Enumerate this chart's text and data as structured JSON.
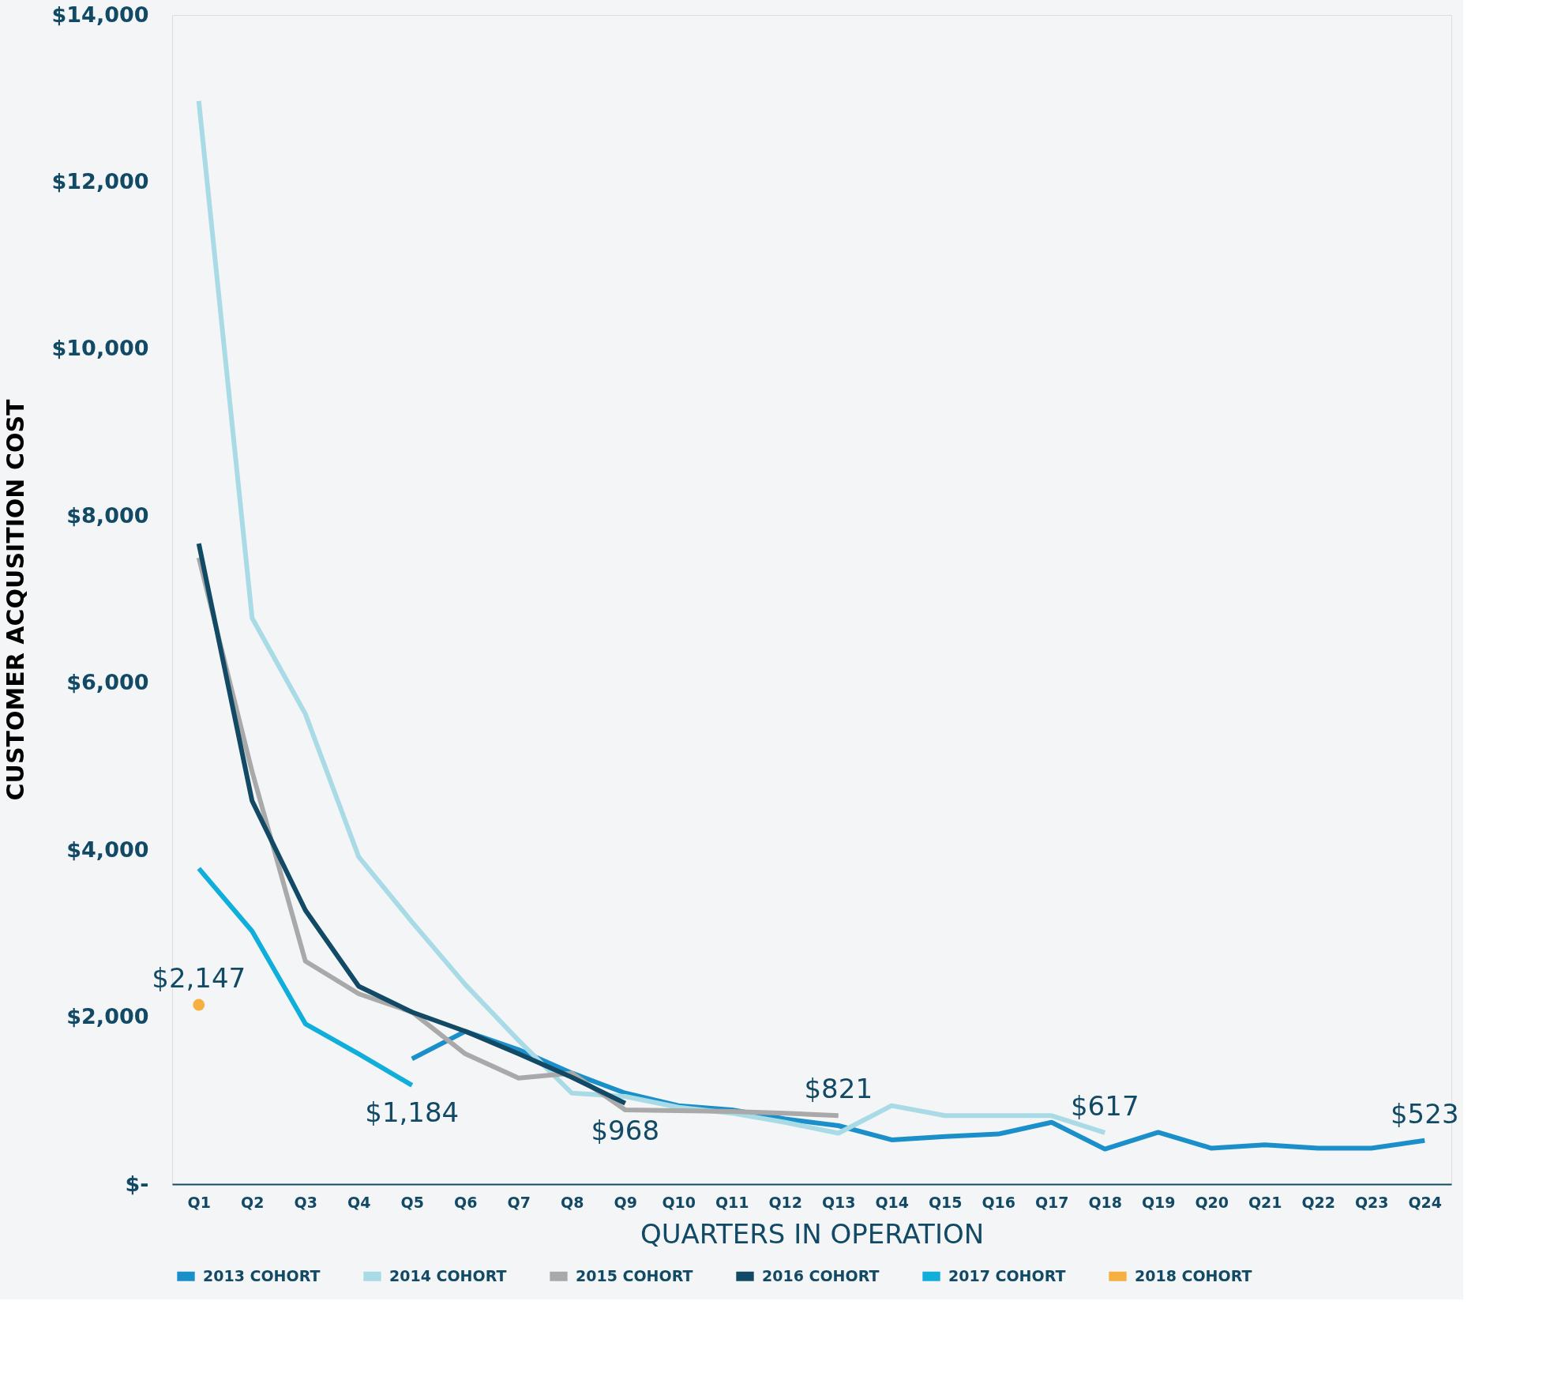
{
  "chart_data": {
    "type": "line",
    "xlabel": "QUARTERS IN OPERATION",
    "ylabel": "CUSTOMER ACQUSITION COST",
    "categories": [
      "Q1",
      "Q2",
      "Q3",
      "Q4",
      "Q5",
      "Q6",
      "Q7",
      "Q8",
      "Q9",
      "Q10",
      "Q11",
      "Q12",
      "Q13",
      "Q14",
      "Q15",
      "Q16",
      "Q17",
      "Q18",
      "Q19",
      "Q20",
      "Q21",
      "Q22",
      "Q23",
      "Q24"
    ],
    "ylim": [
      0,
      14000
    ],
    "yticks": [
      {
        "value": 0,
        "label": "$-"
      },
      {
        "value": 2000,
        "label": "$2,000"
      },
      {
        "value": 4000,
        "label": "$4,000"
      },
      {
        "value": 6000,
        "label": "$6,000"
      },
      {
        "value": 8000,
        "label": "$8,000"
      },
      {
        "value": 10000,
        "label": "$10,000"
      },
      {
        "value": 12000,
        "label": "$12,000"
      },
      {
        "value": 14000,
        "label": "$14,000"
      }
    ],
    "series": [
      {
        "name": "2013 COHORT",
        "color": "#1a8fc9",
        "values": [
          null,
          null,
          null,
          null,
          1500,
          1830,
          1610,
          1330,
          1090,
          940,
          890,
          780,
          700,
          530,
          570,
          600,
          740,
          420,
          620,
          430,
          470,
          430,
          430,
          523
        ],
        "value_labels": [
          null,
          null,
          null,
          null,
          null,
          null,
          null,
          null,
          null,
          null,
          null,
          null,
          null,
          null,
          null,
          null,
          null,
          null,
          null,
          null,
          null,
          null,
          null,
          "$523"
        ]
      },
      {
        "name": "2014 COHORT",
        "color": "#a8dbe6",
        "values": [
          12970,
          6780,
          5630,
          3920,
          3140,
          2390,
          1720,
          1090,
          1050,
          920,
          850,
          740,
          610,
          940,
          820,
          820,
          820,
          617,
          null,
          null,
          null,
          null,
          null,
          null
        ],
        "value_labels": [
          null,
          null,
          null,
          null,
          null,
          null,
          null,
          null,
          null,
          null,
          null,
          null,
          null,
          null,
          null,
          null,
          null,
          "$617",
          null,
          null,
          null,
          null,
          null,
          null
        ]
      },
      {
        "name": "2015 COHORT",
        "color": "#a9a9a9",
        "values": [
          7500,
          4940,
          2670,
          2280,
          2060,
          1560,
          1270,
          1330,
          890,
          880,
          870,
          850,
          821,
          null,
          null,
          null,
          null,
          null,
          null,
          null,
          null,
          null,
          null,
          null
        ],
        "value_labels": [
          null,
          null,
          null,
          null,
          null,
          null,
          null,
          null,
          null,
          null,
          null,
          null,
          "$821",
          null,
          null,
          null,
          null,
          null,
          null,
          null,
          null,
          null,
          null,
          null
        ]
      },
      {
        "name": "2016 COHORT",
        "color": "#124a66",
        "values": [
          7670,
          4590,
          3280,
          2370,
          2060,
          1830,
          1560,
          1280,
          968,
          null,
          null,
          null,
          null,
          null,
          null,
          null,
          null,
          null,
          null,
          null,
          null,
          null,
          null,
          null
        ],
        "value_labels": [
          null,
          null,
          null,
          null,
          null,
          null,
          null,
          null,
          "$968",
          null,
          null,
          null,
          null,
          null,
          null,
          null,
          null,
          null,
          null,
          null,
          null,
          null,
          null,
          null
        ]
      },
      {
        "name": "2017 COHORT",
        "color": "#10aedb",
        "values": [
          3780,
          3030,
          1920,
          1560,
          1184,
          null,
          null,
          null,
          null,
          null,
          null,
          null,
          null,
          null,
          null,
          null,
          null,
          null,
          null,
          null,
          null,
          null,
          null,
          null
        ],
        "value_labels": [
          null,
          null,
          null,
          null,
          "$1,184",
          null,
          null,
          null,
          null,
          null,
          null,
          null,
          null,
          null,
          null,
          null,
          null,
          null,
          null,
          null,
          null,
          null,
          null,
          null
        ]
      },
      {
        "name": "2018 COHORT",
        "type": "scatter",
        "marker": "circle",
        "color": "#f5b041",
        "values": [
          2147,
          null,
          null,
          null,
          null,
          null,
          null,
          null,
          null,
          null,
          null,
          null,
          null,
          null,
          null,
          null,
          null,
          null,
          null,
          null,
          null,
          null,
          null,
          null
        ],
        "value_labels": [
          "$2,147",
          null,
          null,
          null,
          null,
          null,
          null,
          null,
          null,
          null,
          null,
          null,
          null,
          null,
          null,
          null,
          null,
          null,
          null,
          null,
          null,
          null,
          null,
          null
        ]
      }
    ],
    "legend": "bottom",
    "grid": false,
    "line_style": "solid"
  }
}
